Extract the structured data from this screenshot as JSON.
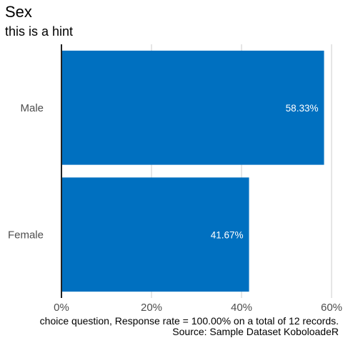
{
  "title": "Sex",
  "subtitle": "this is a hint",
  "caption": [
    "choice question, Response rate = 100.00% on a total of 12 records.",
    "Source: Sample Dataset KoboloadeR"
  ],
  "colors": {
    "bar": "#0070C0",
    "grid": "#cccccc",
    "axis": "#222222",
    "tick_text": "#4d4d4d",
    "label_text": "#ffffff"
  },
  "chart_data": {
    "type": "bar",
    "orientation": "horizontal",
    "categories": [
      "Male",
      "Female"
    ],
    "values": [
      58.33,
      41.67
    ],
    "value_labels": [
      "58.33%",
      "41.67%"
    ],
    "xlim": [
      0,
      60
    ],
    "xticks": [
      0,
      20,
      40,
      60
    ],
    "xtick_labels": [
      "0%",
      "20%",
      "40%",
      "60%"
    ],
    "grid": "vertical major"
  }
}
